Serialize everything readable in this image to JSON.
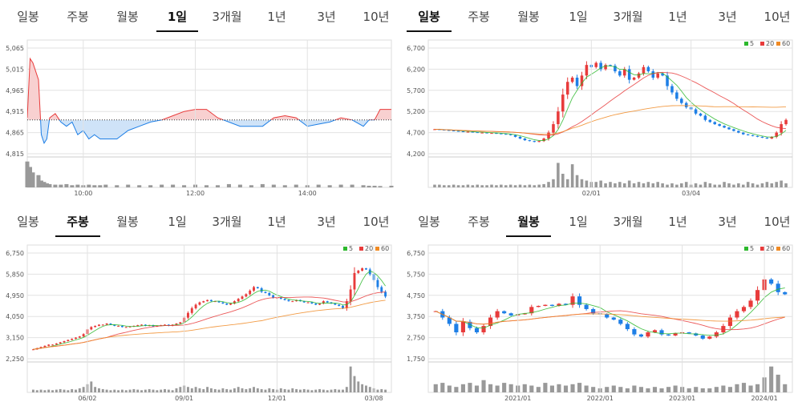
{
  "tab_labels": [
    "일봉",
    "주봉",
    "월봉",
    "1일",
    "3개월",
    "1년",
    "3년",
    "10년"
  ],
  "legend": [
    {
      "label": "5",
      "color": "#2db82d"
    },
    {
      "label": "20",
      "color": "#e83b3b"
    },
    {
      "label": "60",
      "color": "#f08a24"
    }
  ],
  "colors": {
    "up": "#e83b3b",
    "down": "#1e7fe6",
    "volume": "#999999",
    "grid": "#e2e2e2"
  },
  "chart_data": [
    {
      "id": "intraday",
      "type": "area",
      "active_tab": "1일",
      "baseline": 4895,
      "yticks": [
        "5,065",
        "5,015",
        "4,965",
        "4,915",
        "4,865",
        "4,815"
      ],
      "ytick_values": [
        5065,
        5015,
        4965,
        4915,
        4865,
        4815
      ],
      "ylim": [
        4815,
        5065
      ],
      "xticks": [
        "10:00",
        "12:00",
        "14:00"
      ],
      "xtick_values": [
        10,
        12,
        14
      ],
      "xlim": [
        9,
        15.5
      ],
      "x": [
        9.0,
        9.05,
        9.1,
        9.2,
        9.25,
        9.3,
        9.35,
        9.4,
        9.5,
        9.6,
        9.7,
        9.8,
        9.9,
        10.0,
        10.1,
        10.2,
        10.3,
        10.4,
        10.6,
        10.8,
        11.0,
        11.2,
        11.4,
        11.6,
        11.8,
        12.0,
        12.2,
        12.4,
        12.6,
        12.8,
        13.0,
        13.2,
        13.4,
        13.6,
        13.8,
        14.0,
        14.2,
        14.4,
        14.6,
        14.8,
        15.0,
        15.1,
        15.2,
        15.3,
        15.5
      ],
      "y": [
        4900,
        5040,
        5030,
        4990,
        4860,
        4840,
        4850,
        4900,
        4910,
        4890,
        4880,
        4890,
        4860,
        4870,
        4850,
        4860,
        4850,
        4850,
        4850,
        4870,
        4880,
        4890,
        4895,
        4905,
        4915,
        4920,
        4920,
        4900,
        4890,
        4880,
        4880,
        4880,
        4900,
        4905,
        4900,
        4880,
        4885,
        4890,
        4900,
        4895,
        4880,
        4895,
        4895,
        4920,
        4920
      ],
      "volumes": [
        0.95,
        0.75,
        0.55,
        0.45,
        0.25,
        0.2,
        0.15,
        0.12,
        0.1,
        0.1,
        0.12,
        0.08,
        0.1,
        0.08,
        0.1,
        0.08,
        0.08,
        0.1,
        0.08,
        0.1,
        0.08,
        0.08,
        0.1,
        0.1,
        0.08,
        0.1,
        0.08,
        0.08,
        0.12,
        0.1,
        0.08,
        0.12,
        0.1,
        0.08,
        0.1,
        0.08,
        0.1,
        0.08,
        0.1,
        0.1,
        0.08,
        0.06,
        0.06,
        0.05,
        0.06
      ]
    },
    {
      "id": "daily",
      "type": "candlestick",
      "active_tab": "일봉",
      "yticks": [
        "6,700",
        "6,200",
        "5,700",
        "5,200",
        "4,700",
        "4,200"
      ],
      "ytick_values": [
        6700,
        6200,
        5700,
        5200,
        4700,
        4200
      ],
      "ylim": [
        4200,
        6700
      ],
      "xticks": [
        "02/01",
        "03/04"
      ],
      "xtick_positions": [
        33,
        54
      ],
      "n": 75,
      "close": [
        4780,
        4770,
        4760,
        4750,
        4740,
        4730,
        4720,
        4720,
        4710,
        4700,
        4700,
        4690,
        4690,
        4680,
        4670,
        4660,
        4640,
        4600,
        4560,
        4520,
        4500,
        4480,
        4500,
        4560,
        4700,
        4900,
        5200,
        5600,
        5900,
        6000,
        5800,
        6050,
        6300,
        6250,
        6350,
        6200,
        6300,
        6280,
        6150,
        6050,
        6200,
        5950,
        6000,
        6100,
        6250,
        6150,
        6000,
        6100,
        6050,
        5800,
        5650,
        5500,
        5400,
        5300,
        5250,
        5150,
        5100,
        5000,
        4950,
        4900,
        4860,
        4820,
        4780,
        4740,
        4700,
        4660,
        4640,
        4620,
        4600,
        4580,
        4560,
        4600,
        4700,
        4900,
        5000
      ],
      "volumes": [
        0.1,
        0.1,
        0.08,
        0.08,
        0.1,
        0.08,
        0.08,
        0.1,
        0.08,
        0.1,
        0.08,
        0.08,
        0.1,
        0.08,
        0.1,
        0.08,
        0.1,
        0.08,
        0.1,
        0.08,
        0.1,
        0.08,
        0.1,
        0.12,
        0.2,
        0.3,
        0.9,
        0.5,
        0.3,
        0.85,
        0.45,
        0.3,
        0.25,
        0.2,
        0.2,
        0.25,
        0.15,
        0.2,
        0.15,
        0.2,
        0.15,
        0.25,
        0.15,
        0.2,
        0.15,
        0.2,
        0.15,
        0.2,
        0.15,
        0.1,
        0.15,
        0.1,
        0.15,
        0.2,
        0.1,
        0.15,
        0.1,
        0.2,
        0.15,
        0.1,
        0.1,
        0.2,
        0.15,
        0.1,
        0.15,
        0.1,
        0.2,
        0.15,
        0.1,
        0.15,
        0.2,
        0.15,
        0.2,
        0.25,
        0.15
      ]
    },
    {
      "id": "weekly",
      "type": "candlestick",
      "active_tab": "주봉",
      "yticks": [
        "6,750",
        "5,850",
        "4,950",
        "4,050",
        "3,150",
        "2,250"
      ],
      "ytick_values": [
        6750,
        5850,
        4950,
        4050,
        3150,
        2250
      ],
      "ylim": [
        2250,
        6750
      ],
      "xticks": [
        "06/02",
        "09/01",
        "12/01",
        "03/08"
      ],
      "xtick_positions": [
        14,
        39,
        63,
        88
      ],
      "n": 92,
      "close": [
        2650,
        2700,
        2750,
        2800,
        2850,
        2850,
        2900,
        2950,
        3000,
        3050,
        3100,
        3150,
        3200,
        3300,
        3500,
        3600,
        3650,
        3700,
        3700,
        3750,
        3700,
        3650,
        3650,
        3600,
        3600,
        3620,
        3650,
        3680,
        3700,
        3650,
        3680,
        3620,
        3650,
        3680,
        3700,
        3650,
        3700,
        3750,
        3800,
        4000,
        4200,
        4400,
        4550,
        4650,
        4700,
        4750,
        4700,
        4700,
        4650,
        4600,
        4550,
        4600,
        4700,
        4800,
        4900,
        5000,
        5150,
        5300,
        5250,
        5100,
        5050,
        4950,
        4850,
        4850,
        4800,
        4750,
        4700,
        4700,
        4750,
        4700,
        4650,
        4650,
        4600,
        4550,
        4600,
        4700,
        4650,
        4600,
        4550,
        4500,
        4400,
        4700,
        5200,
        5900,
        6000,
        6100,
        6050,
        5850,
        5600,
        5300,
        5100,
        4900
      ],
      "volumes": [
        0.1,
        0.08,
        0.1,
        0.08,
        0.1,
        0.08,
        0.1,
        0.12,
        0.1,
        0.08,
        0.12,
        0.1,
        0.15,
        0.2,
        0.3,
        0.4,
        0.2,
        0.15,
        0.12,
        0.1,
        0.08,
        0.1,
        0.08,
        0.1,
        0.08,
        0.1,
        0.12,
        0.1,
        0.08,
        0.1,
        0.12,
        0.1,
        0.08,
        0.1,
        0.12,
        0.1,
        0.08,
        0.15,
        0.2,
        0.25,
        0.2,
        0.15,
        0.2,
        0.15,
        0.12,
        0.2,
        0.15,
        0.12,
        0.1,
        0.15,
        0.12,
        0.1,
        0.15,
        0.2,
        0.15,
        0.12,
        0.15,
        0.2,
        0.15,
        0.12,
        0.1,
        0.15,
        0.12,
        0.1,
        0.15,
        0.12,
        0.1,
        0.15,
        0.12,
        0.1,
        0.12,
        0.1,
        0.08,
        0.1,
        0.12,
        0.1,
        0.08,
        0.1,
        0.12,
        0.1,
        0.1,
        0.2,
        0.95,
        0.6,
        0.4,
        0.3,
        0.25,
        0.2,
        0.15,
        0.1,
        0.12,
        0.1
      ]
    },
    {
      "id": "monthly",
      "type": "candlestick",
      "active_tab": "월봉",
      "yticks": [
        "6,750",
        "5,750",
        "4,750",
        "3,750",
        "2,750",
        "1,750"
      ],
      "ytick_values": [
        6750,
        5750,
        4750,
        3750,
        2750,
        1750
      ],
      "ylim": [
        1750,
        6750
      ],
      "xticks": [
        "2021/01",
        "2022/01",
        "2023/01",
        "2024/01"
      ],
      "xtick_positions": [
        12,
        24,
        36,
        48
      ],
      "n": 52,
      "close": [
        4000,
        3700,
        3400,
        3000,
        3500,
        3200,
        3000,
        3300,
        3700,
        4000,
        3900,
        3800,
        3850,
        3900,
        4200,
        4250,
        4300,
        4250,
        4350,
        4300,
        4700,
        4300,
        4100,
        3900,
        3850,
        3700,
        3600,
        3400,
        3150,
        2900,
        2800,
        3000,
        3100,
        2900,
        2850,
        2950,
        3000,
        2950,
        2850,
        2700,
        2800,
        3000,
        3300,
        3700,
        4000,
        4200,
        4500,
        5000,
        5500,
        5300,
        4900,
        4800
      ],
      "volumes": [
        0.3,
        0.35,
        0.25,
        0.2,
        0.3,
        0.35,
        0.25,
        0.45,
        0.3,
        0.25,
        0.35,
        0.3,
        0.25,
        0.3,
        0.25,
        0.2,
        0.35,
        0.25,
        0.3,
        0.25,
        0.3,
        0.35,
        0.25,
        0.2,
        0.15,
        0.2,
        0.25,
        0.2,
        0.15,
        0.25,
        0.2,
        0.15,
        0.2,
        0.15,
        0.2,
        0.25,
        0.2,
        0.15,
        0.2,
        0.15,
        0.15,
        0.2,
        0.25,
        0.2,
        0.3,
        0.35,
        0.25,
        0.3,
        0.55,
        0.95,
        0.65,
        0.3
      ]
    }
  ]
}
